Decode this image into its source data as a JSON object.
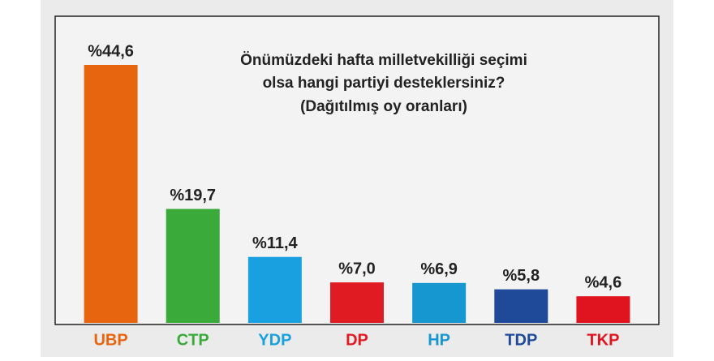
{
  "chart_data": {
    "type": "bar",
    "title": [
      "Önümüzdeki hafta milletvekilliği seçimi",
      "olsa hangi partiyi desteklersiniz?"
    ],
    "subtitle": "(Dağıtılmış oy oranları)",
    "categories": [
      "UBP",
      "CTP",
      "YDP",
      "DP",
      "HP",
      "TDP",
      "TKP"
    ],
    "values": [
      44.6,
      19.7,
      11.4,
      7.0,
      6.9,
      5.8,
      4.6
    ],
    "value_labels": [
      "%44,6",
      "%19,7",
      "%11,4",
      "%7,0",
      "%6,9",
      "%5,8",
      "%4,6"
    ],
    "colors": [
      "#e8650f",
      "#3aaa3a",
      "#19a0e0",
      "#e01b22",
      "#1797cf",
      "#1f4a9a",
      "#e0141e"
    ]
  }
}
